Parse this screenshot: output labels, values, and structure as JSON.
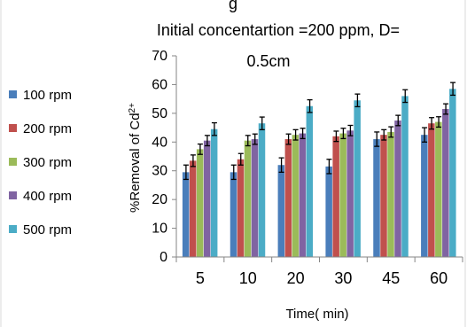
{
  "chart_data": {
    "type": "bar",
    "title_line1": "Initial concentartion =200 ppm, D=",
    "title_line2": "0.5cm",
    "title_fragment_top": "g",
    "xlabel": "Time( min)",
    "ylabel_prefix": "%Removal of Cd",
    "ylabel_superscript": "2+",
    "ylim": [
      0,
      70
    ],
    "yticks": [
      "0",
      "10",
      "20",
      "30",
      "40",
      "50",
      "60",
      "70"
    ],
    "categories": [
      "5",
      "10",
      "20",
      "30",
      "45",
      "60"
    ],
    "legend_position": "left",
    "series": [
      {
        "name": "100 rpm",
        "color": "#4a7ebb",
        "values": [
          29.5,
          29.5,
          32,
          31.5,
          41,
          42.5
        ],
        "errors": [
          2.5,
          2.5,
          2.5,
          2.5,
          2.5,
          2.5
        ]
      },
      {
        "name": "200 rpm",
        "color": "#c0504d",
        "values": [
          33.5,
          34,
          41,
          42,
          42.5,
          46.5
        ],
        "errors": [
          2,
          2,
          1.8,
          1.8,
          1.8,
          2
        ]
      },
      {
        "name": "300 rpm",
        "color": "#9bbb59",
        "values": [
          37.5,
          40.5,
          42.5,
          43,
          43.5,
          47
        ],
        "errors": [
          1.8,
          1.8,
          1.8,
          1.8,
          1.8,
          1.8
        ]
      },
      {
        "name": "400 rpm",
        "color": "#8064a2",
        "values": [
          40.5,
          41,
          43,
          44,
          47.5,
          51.5
        ],
        "errors": [
          1.8,
          1.8,
          1.8,
          1.8,
          1.8,
          1.8
        ]
      },
      {
        "name": "500 rpm",
        "color": "#4bacc6",
        "values": [
          44.5,
          46.5,
          52.5,
          54.5,
          56,
          58.5
        ],
        "errors": [
          2.2,
          2.2,
          2.2,
          2.2,
          2.2,
          2.2
        ]
      }
    ]
  }
}
